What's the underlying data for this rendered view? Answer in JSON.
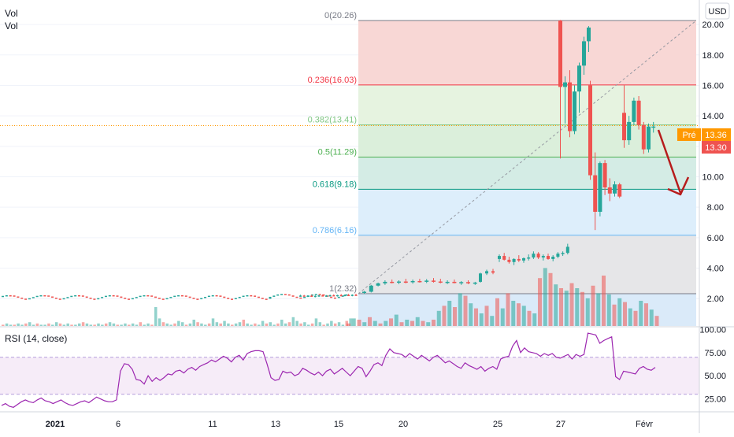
{
  "legend": {
    "line1": "Vol",
    "line2": "Vol"
  },
  "currency_button": "USD",
  "price_tags": {
    "pre_label": "Pré",
    "pre_value": "13.36",
    "last_value": "13.30"
  },
  "rsi_label": "RSI (14, close)",
  "x_tick_labels": [
    "2021",
    "6",
    "11",
    "13",
    "15",
    "20",
    "25",
    "27",
    "Févr"
  ],
  "colors": {
    "up": "#26a69a",
    "down": "#ef5350",
    "rsi": "#9c27b0",
    "arrow": "#b71c1c",
    "pre_tag": "#ff9800"
  },
  "chart_data": [
    {
      "type": "candlestick",
      "title": "",
      "y_axis_range": [
        0.2,
        21.3
      ],
      "y_tick_labels": [
        "2.00",
        "4.00",
        "6.00",
        "8.00",
        "10.00",
        "12.00",
        "14.00",
        "16.00",
        "18.00",
        "20.00"
      ],
      "y_ticks": [
        2,
        4,
        6,
        8,
        10,
        12,
        14,
        16,
        18,
        20
      ],
      "fib_levels": [
        {
          "ratio": "0",
          "price": 20.26,
          "label": "0(20.26)",
          "color": "#787b86"
        },
        {
          "ratio": "0.236",
          "price": 16.03,
          "label": "0.236(16.03)",
          "color": "#f23645"
        },
        {
          "ratio": "0.382",
          "price": 13.41,
          "label": "0.382(13.41)",
          "color": "#81c784"
        },
        {
          "ratio": "0.5",
          "price": 11.29,
          "label": "0.5(11.29)",
          "color": "#4caf50"
        },
        {
          "ratio": "0.618",
          "price": 9.18,
          "label": "0.618(9.18)",
          "color": "#089981"
        },
        {
          "ratio": "0.786",
          "price": 6.16,
          "label": "0.786(6.16)",
          "color": "#64b5f6"
        },
        {
          "ratio": "1",
          "price": 2.32,
          "label": "1(2.32)",
          "color": "#787b86"
        }
      ],
      "zones": [
        {
          "from": 20.26,
          "to": 16.03,
          "color": "#f8d7d5"
        },
        {
          "from": 16.03,
          "to": 13.41,
          "color": "#e6f3e0"
        },
        {
          "from": 13.41,
          "to": 11.29,
          "color": "#dbefdb"
        },
        {
          "from": 11.29,
          "to": 9.18,
          "color": "#d4ece5"
        },
        {
          "from": 9.18,
          "to": 6.16,
          "color": "#ddeefb"
        },
        {
          "from": 6.16,
          "to": 2.32,
          "color": "#e6e6e8"
        },
        {
          "from": 2.32,
          "to": 0.2,
          "color": "#daeaf9"
        }
      ],
      "current_price": 13.36,
      "last_price": 13.3,
      "candles_pre_rally": [
        {
          "o": 2.18,
          "h": 2.25,
          "l": 2.12,
          "c": 2.2
        },
        {
          "o": 2.2,
          "h": 2.24,
          "l": 2.14,
          "c": 2.16
        },
        {
          "o": 2.16,
          "h": 2.22,
          "l": 2.1,
          "c": 2.19
        },
        {
          "o": 2.19,
          "h": 2.25,
          "l": 2.13,
          "c": 2.15
        },
        {
          "o": 2.15,
          "h": 2.21,
          "l": 2.08,
          "c": 2.18
        },
        {
          "o": 2.18,
          "h": 2.24,
          "l": 2.12,
          "c": 2.21
        },
        {
          "o": 2.21,
          "h": 2.27,
          "l": 2.15,
          "c": 2.17
        },
        {
          "o": 2.17,
          "h": 2.23,
          "l": 2.11,
          "c": 2.2
        },
        {
          "o": 2.2,
          "h": 2.26,
          "l": 2.14,
          "c": 2.22
        },
        {
          "o": 2.22,
          "h": 2.28,
          "l": 2.16,
          "c": 2.18
        },
        {
          "o": 2.18,
          "h": 2.25,
          "l": 2.13,
          "c": 2.23
        },
        {
          "o": 2.23,
          "h": 2.3,
          "l": 2.17,
          "c": 2.2
        },
        {
          "o": 2.2,
          "h": 2.27,
          "l": 2.15,
          "c": 2.24
        },
        {
          "o": 2.24,
          "h": 2.31,
          "l": 2.18,
          "c": 2.21
        },
        {
          "o": 2.21,
          "h": 2.28,
          "l": 2.15,
          "c": 2.25
        },
        {
          "o": 2.25,
          "h": 2.32,
          "l": 2.19,
          "c": 2.22
        }
      ],
      "candles_rally": [
        {
          "o": 2.4,
          "h": 2.5,
          "l": 2.3,
          "c": 2.45
        },
        {
          "o": 2.45,
          "h": 2.9,
          "l": 2.4,
          "c": 2.85
        },
        {
          "o": 2.85,
          "h": 3.05,
          "l": 2.8,
          "c": 3.0
        },
        {
          "o": 3.0,
          "h": 3.2,
          "l": 2.9,
          "c": 3.1
        },
        {
          "o": 3.1,
          "h": 3.25,
          "l": 3.0,
          "c": 3.05
        },
        {
          "o": 3.05,
          "h": 3.2,
          "l": 2.95,
          "c": 3.12
        },
        {
          "o": 3.12,
          "h": 3.3,
          "l": 3.0,
          "c": 3.08
        },
        {
          "o": 3.08,
          "h": 3.25,
          "l": 2.98,
          "c": 3.15
        },
        {
          "o": 3.15,
          "h": 3.3,
          "l": 3.05,
          "c": 3.1
        },
        {
          "o": 3.1,
          "h": 3.28,
          "l": 3.02,
          "c": 3.18
        },
        {
          "o": 3.18,
          "h": 3.35,
          "l": 3.05,
          "c": 3.12
        },
        {
          "o": 3.12,
          "h": 3.3,
          "l": 3.0,
          "c": 3.05
        },
        {
          "o": 3.05,
          "h": 3.2,
          "l": 2.95,
          "c": 3.1
        },
        {
          "o": 3.1,
          "h": 3.25,
          "l": 3.0,
          "c": 3.02
        },
        {
          "o": 3.02,
          "h": 3.15,
          "l": 2.9,
          "c": 3.08
        },
        {
          "o": 3.08,
          "h": 3.2,
          "l": 2.95,
          "c": 3.0
        },
        {
          "o": 3.0,
          "h": 3.1,
          "l": 2.9,
          "c": 3.05
        },
        {
          "o": 3.1,
          "h": 3.7,
          "l": 3.05,
          "c": 3.65
        },
        {
          "o": 3.65,
          "h": 3.9,
          "l": 3.55,
          "c": 3.8
        },
        {
          "o": 3.8,
          "h": 3.95,
          "l": 3.6,
          "c": 3.7
        },
        {
          "o": 4.6,
          "h": 4.9,
          "l": 4.4,
          "c": 4.8
        },
        {
          "o": 4.8,
          "h": 5.0,
          "l": 4.5,
          "c": 4.55
        },
        {
          "o": 4.55,
          "h": 4.75,
          "l": 4.3,
          "c": 4.4
        },
        {
          "o": 4.4,
          "h": 4.65,
          "l": 4.2,
          "c": 4.6
        },
        {
          "o": 4.6,
          "h": 4.85,
          "l": 4.4,
          "c": 4.5
        },
        {
          "o": 4.5,
          "h": 4.7,
          "l": 4.35,
          "c": 4.65
        },
        {
          "o": 4.65,
          "h": 4.9,
          "l": 4.5,
          "c": 4.7
        },
        {
          "o": 4.7,
          "h": 5.1,
          "l": 4.6,
          "c": 4.95
        },
        {
          "o": 4.95,
          "h": 5.05,
          "l": 4.6,
          "c": 4.7
        },
        {
          "o": 4.7,
          "h": 4.9,
          "l": 4.5,
          "c": 4.8
        },
        {
          "o": 4.8,
          "h": 4.95,
          "l": 4.55,
          "c": 4.6
        },
        {
          "o": 4.6,
          "h": 4.85,
          "l": 4.45,
          "c": 4.75
        },
        {
          "o": 4.75,
          "h": 5.05,
          "l": 4.65,
          "c": 4.95
        },
        {
          "o": 4.95,
          "h": 5.1,
          "l": 4.8,
          "c": 5.0
        },
        {
          "o": 5.0,
          "h": 5.6,
          "l": 4.9,
          "c": 5.4
        }
      ],
      "candles_squeeze": [
        {
          "o": 20.26,
          "h": 20.3,
          "l": 11.2,
          "c": 15.9
        },
        {
          "o": 15.9,
          "h": 16.6,
          "l": 13.5,
          "c": 16.2
        },
        {
          "o": 16.2,
          "h": 17.0,
          "l": 12.6,
          "c": 13.0
        },
        {
          "o": 13.0,
          "h": 16.0,
          "l": 12.8,
          "c": 15.6
        },
        {
          "o": 15.6,
          "h": 17.5,
          "l": 14.2,
          "c": 17.3
        },
        {
          "o": 17.3,
          "h": 19.2,
          "l": 16.7,
          "c": 18.9
        },
        {
          "o": 18.9,
          "h": 19.9,
          "l": 18.2,
          "c": 19.8
        },
        {
          "o": 16.0,
          "h": 16.3,
          "l": 9.8,
          "c": 10.1
        },
        {
          "o": 10.1,
          "h": 11.6,
          "l": 6.5,
          "c": 7.7
        },
        {
          "o": 7.7,
          "h": 11.0,
          "l": 7.4,
          "c": 10.9
        },
        {
          "o": 10.9,
          "h": 11.1,
          "l": 8.8,
          "c": 9.3
        },
        {
          "o": 9.3,
          "h": 9.9,
          "l": 8.4,
          "c": 8.9
        },
        {
          "o": 8.9,
          "h": 9.7,
          "l": 8.7,
          "c": 9.5
        },
        {
          "o": 9.5,
          "h": 9.6,
          "l": 8.6,
          "c": 8.7
        },
        {
          "o": 14.2,
          "h": 16.0,
          "l": 11.9,
          "c": 12.4
        },
        {
          "o": 12.4,
          "h": 14.0,
          "l": 12.1,
          "c": 13.6
        },
        {
          "o": 13.6,
          "h": 15.2,
          "l": 13.4,
          "c": 15.0
        },
        {
          "o": 15.0,
          "h": 15.3,
          "l": 13.1,
          "c": 13.4
        },
        {
          "o": 13.4,
          "h": 13.6,
          "l": 11.5,
          "c": 11.8
        },
        {
          "o": 11.8,
          "h": 13.5,
          "l": 11.6,
          "c": 13.3
        },
        {
          "o": 13.3,
          "h": 13.6,
          "l": 12.9,
          "c": 13.3
        }
      ],
      "volume": [
        0.2,
        0.6,
        0.5,
        0.3,
        0.7,
        0.4,
        0.2,
        0.4,
        0.6,
        0.9,
        0.3,
        0.5,
        0.4,
        0.7,
        0.4,
        0.3,
        0.5,
        1.2,
        1.6,
        2.0,
        1.5,
        2.6,
        2.4,
        1.8,
        1.4,
        1.0,
        1.6,
        0.8,
        2.2,
        1.4,
        2.6,
        2.0,
        1.8,
        1.6,
        1.2,
        1.0,
        3.8,
        4.6,
        4.2,
        3.3,
        3.0,
        2.8,
        3.4,
        3.0,
        2.7,
        2.2,
        3.2,
        2.6,
        4.0,
        2.5,
        1.7,
        2.2,
        1.9,
        1.4,
        1.2,
        2.0,
        1.8,
        1.3,
        0.8
      ],
      "volume_prior": [
        0.1,
        0.2,
        0.1,
        0.1,
        0.2,
        0.1,
        0.2,
        0.3,
        0.1,
        0.2,
        0.1,
        0.1,
        0.2,
        0.1,
        0.3,
        0.2,
        0.1,
        0.2,
        0.1,
        0.1,
        0.2,
        0.3,
        0.2,
        0.1,
        0.1,
        0.2,
        0.1,
        0.2,
        0.3,
        0.2,
        0.1,
        0.1,
        0.2,
        0.1,
        0.2,
        0.1,
        0.3,
        0.1,
        0.2,
        0.1,
        1.5,
        0.6,
        0.3,
        0.2,
        0.1,
        0.2,
        0.4,
        0.3,
        0.1,
        0.2,
        0.5,
        0.3,
        0.2,
        0.1,
        0.2,
        0.6,
        0.3,
        0.2,
        0.4,
        0.2,
        0.1,
        0.2,
        0.3,
        0.5,
        0.2,
        0.1,
        0.2,
        0.1,
        0.4,
        0.2,
        0.3,
        0.1,
        0.2,
        0.5,
        0.2,
        0.3,
        0.7,
        0.4,
        0.2,
        0.3,
        0.1,
        0.2,
        0.6,
        0.3,
        0.1,
        0.2,
        0.4,
        0.2,
        0.3,
        0.1,
        0.4,
        0.6
      ]
    },
    {
      "type": "line",
      "title": "RSI (14, close)",
      "y_axis_range": [
        12,
        102
      ],
      "y_tick_labels": [
        "25.00",
        "50.00",
        "75.00",
        "100.00"
      ],
      "y_ticks": [
        25,
        50,
        75,
        100
      ],
      "band": {
        "upper": 70,
        "lower": 30
      },
      "series": [
        {
          "values": [
            18,
            20,
            17,
            16,
            19,
            22,
            24,
            22,
            21,
            24,
            26,
            23,
            22,
            20,
            22,
            24,
            21,
            19,
            18,
            20,
            22,
            23,
            21,
            24,
            27,
            25,
            23,
            22,
            22,
            24,
            55,
            63,
            62,
            57,
            46,
            45,
            41,
            50,
            44,
            48,
            45,
            48,
            52,
            51,
            55,
            56,
            53,
            57,
            59,
            56,
            60,
            62,
            64,
            67,
            65,
            68,
            71,
            69,
            65,
            70,
            72,
            67,
            74,
            76,
            77,
            77,
            76,
            63,
            48,
            45,
            46,
            55,
            53,
            54,
            50,
            52,
            58,
            56,
            53,
            51,
            54,
            50,
            55,
            57,
            52,
            55,
            58,
            54,
            50,
            55,
            60,
            58,
            49,
            55,
            62,
            64,
            61,
            72,
            79,
            75,
            74,
            73,
            70,
            74,
            71,
            68,
            72,
            69,
            66,
            70,
            72,
            68,
            64,
            66,
            63,
            60,
            58,
            64,
            61,
            59,
            57,
            60,
            55,
            58,
            60,
            57,
            68,
            70,
            71,
            82,
            88,
            75,
            80,
            76,
            75,
            74,
            71,
            74,
            72,
            74,
            70,
            69,
            71,
            73,
            68,
            73,
            71,
            73,
            96,
            95,
            94,
            85,
            88,
            90,
            92,
            49,
            46,
            55,
            54,
            53,
            52,
            58,
            60,
            57,
            56,
            59
          ]
        }
      ]
    }
  ]
}
